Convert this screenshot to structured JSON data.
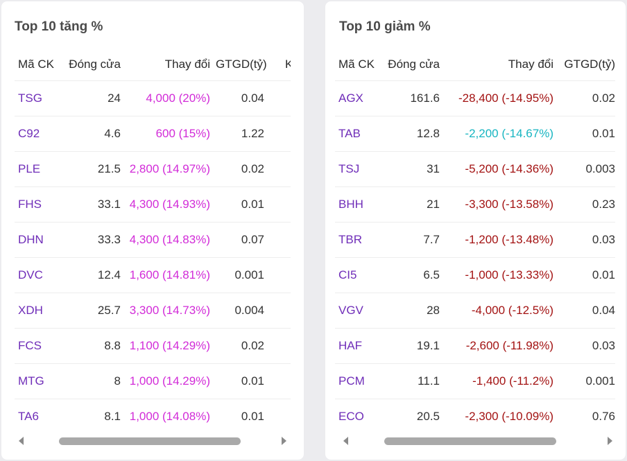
{
  "colors": {
    "code": "#6f2db8",
    "up": "#d22bd8",
    "down": "#a31212",
    "floor": "#17b5c1"
  },
  "gainers": {
    "title": "Top 10 tăng %",
    "columns": [
      "Mã CK",
      "Đóng cửa",
      "Thay đổi",
      "GTGD(tỷ)",
      "K"
    ],
    "rows": [
      {
        "code": "TSG",
        "close": "24",
        "change": "4,000 (20%)",
        "value": "0.04"
      },
      {
        "code": "C92",
        "close": "4.6",
        "change": "600 (15%)",
        "value": "1.22"
      },
      {
        "code": "PLE",
        "close": "21.5",
        "change": "2,800 (14.97%)",
        "value": "0.02"
      },
      {
        "code": "FHS",
        "close": "33.1",
        "change": "4,300 (14.93%)",
        "value": "0.01"
      },
      {
        "code": "DHN",
        "close": "33.3",
        "change": "4,300 (14.83%)",
        "value": "0.07"
      },
      {
        "code": "DVC",
        "close": "12.4",
        "change": "1,600 (14.81%)",
        "value": "0.001"
      },
      {
        "code": "XDH",
        "close": "25.7",
        "change": "3,300 (14.73%)",
        "value": "0.004"
      },
      {
        "code": "FCS",
        "close": "8.8",
        "change": "1,100 (14.29%)",
        "value": "0.02"
      },
      {
        "code": "MTG",
        "close": "8",
        "change": "1,000 (14.29%)",
        "value": "0.01"
      },
      {
        "code": "TA6",
        "close": "8.1",
        "change": "1,000 (14.08%)",
        "value": "0.01"
      }
    ]
  },
  "losers": {
    "title": "Top 10 giảm %",
    "columns": [
      "Mã CK",
      "Đóng cửa",
      "Thay đổi",
      "GTGD(tỷ)"
    ],
    "rows": [
      {
        "code": "AGX",
        "close": "161.6",
        "change": "-28,400 (-14.95%)",
        "value": "0.02",
        "status": "down"
      },
      {
        "code": "TAB",
        "close": "12.8",
        "change": "-2,200 (-14.67%)",
        "value": "0.01",
        "status": "floor"
      },
      {
        "code": "TSJ",
        "close": "31",
        "change": "-5,200 (-14.36%)",
        "value": "0.003",
        "status": "down"
      },
      {
        "code": "BHH",
        "close": "21",
        "change": "-3,300 (-13.58%)",
        "value": "0.23",
        "status": "down"
      },
      {
        "code": "TBR",
        "close": "7.7",
        "change": "-1,200 (-13.48%)",
        "value": "0.03",
        "status": "down"
      },
      {
        "code": "CI5",
        "close": "6.5",
        "change": "-1,000 (-13.33%)",
        "value": "0.01",
        "status": "down"
      },
      {
        "code": "VGV",
        "close": "28",
        "change": "-4,000 (-12.5%)",
        "value": "0.04",
        "status": "down"
      },
      {
        "code": "HAF",
        "close": "19.1",
        "change": "-2,600 (-11.98%)",
        "value": "0.03",
        "status": "down"
      },
      {
        "code": "PCM",
        "close": "11.1",
        "change": "-1,400 (-11.2%)",
        "value": "0.001",
        "status": "down"
      },
      {
        "code": "ECO",
        "close": "20.5",
        "change": "-2,300 (-10.09%)",
        "value": "0.76",
        "status": "down"
      }
    ]
  }
}
